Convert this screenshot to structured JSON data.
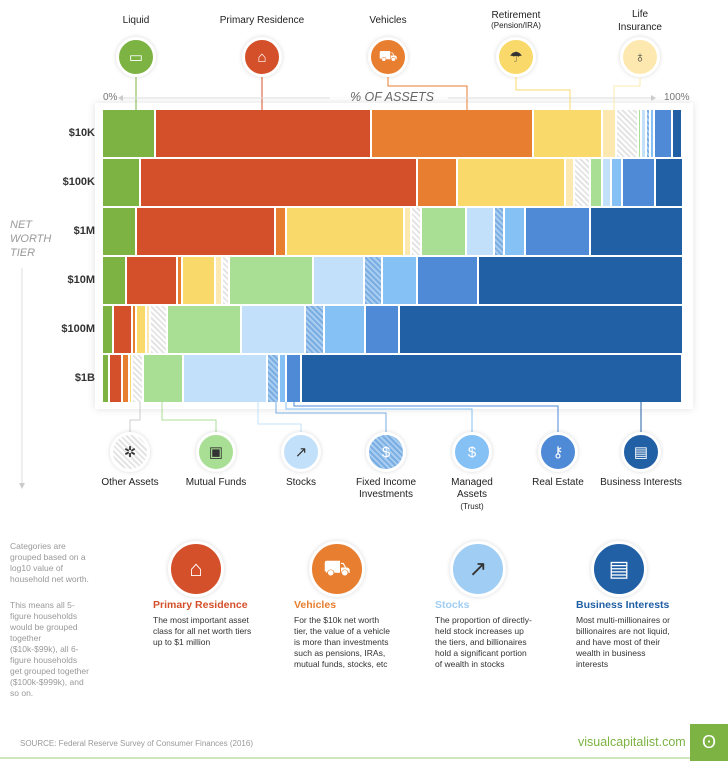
{
  "chart_data": {
    "type": "bar",
    "orientation": "horizontal-stacked-100",
    "axis_label": "% OF ASSETS",
    "axis_min_label": "0%",
    "axis_max_label": "100%",
    "y_title": "NET WORTH TIER",
    "categories": [
      "$10K",
      "$100K",
      "$1M",
      "$10M",
      "$100M",
      "$1B"
    ],
    "series": [
      {
        "name": "Liquid",
        "color": "#7cb342",
        "values": [
          9.1,
          6.5,
          5.8,
          4.1,
          1.9,
          1.2
        ]
      },
      {
        "name": "Primary Residence",
        "color": "#d4502a",
        "values": [
          37.2,
          47.7,
          24.0,
          8.9,
          3.2,
          2.2
        ]
      },
      {
        "name": "Vehicles",
        "color": "#e87e30",
        "values": [
          27.9,
          6.9,
          1.9,
          0.8,
          0.8,
          1.2
        ]
      },
      {
        "name": "Retirement",
        "subtitle": "(Pension/IRA)",
        "color": "#fad96b",
        "values": [
          11.8,
          18.7,
          20.3,
          5.6,
          1.6,
          0.5
        ]
      },
      {
        "name": "Life Insurance",
        "color": "#fde9b0",
        "values": [
          2.5,
          1.6,
          1.3,
          1.3,
          0.8,
          0
        ]
      },
      {
        "name": "Other Assets",
        "color": "#e4e4e4",
        "pattern": "hatch",
        "values": [
          3.7,
          2.6,
          1.6,
          1.2,
          2.9,
          2.0
        ]
      },
      {
        "name": "Mutual Funds",
        "color": "#a8df94",
        "values": [
          0.5,
          2.2,
          7.8,
          14.4,
          12.8,
          6.8
        ]
      },
      {
        "name": "Stocks",
        "color": "#c2e0fa",
        "values": [
          0.9,
          1.5,
          4.8,
          8.9,
          10.9,
          14.5
        ]
      },
      {
        "name": "Fixed Income Investments",
        "color": "#7aaee3",
        "pattern": "hatch",
        "values": [
          0.8,
          0,
          1.7,
          3.1,
          3.4,
          2.1
        ]
      },
      {
        "name": "Managed Assets",
        "subtitle": "(Trust)",
        "color": "#85c1f5",
        "values": [
          0.6,
          1.9,
          3.6,
          6.0,
          6.9,
          1.2
        ]
      },
      {
        "name": "Real Estate",
        "color": "#4f8ad6",
        "values": [
          3.2,
          5.7,
          11.2,
          10.4,
          5.9,
          2.5
        ]
      },
      {
        "name": "Business Interests",
        "color": "#2160a5",
        "values": [
          1.7,
          4.8,
          16.1,
          35.4,
          48.9,
          65.7
        ]
      }
    ]
  },
  "y_title_lines": [
    "NET",
    "WORTH",
    "TIER"
  ],
  "notes": [
    "Categories are grouped based on a log10 value of household net worth.",
    "This means all 5-figure households would be grouped together ($10k-$99k), all 6-figure households get grouped together ($100k-$999k), and so on."
  ],
  "features": [
    {
      "title": "Primary Residence",
      "text": "The most important asset class for all net worth tiers up to $1 million",
      "color": "#d4502a",
      "icon": "house-icon"
    },
    {
      "title": "Vehicles",
      "text": "For the $10k net worth tier, the value of a vehicle is more than investments such as pensions, IRAs, mutual funds, stocks, etc",
      "color": "#e87e30",
      "icon": "car-icon"
    },
    {
      "title": "Stocks",
      "text": "The proportion of directly-held stock increases up the tiers, and billionaires hold a significant portion of wealth in stocks",
      "color": "#9fcdf3",
      "icon": "stock-chart-icon"
    },
    {
      "title": "Business Interests",
      "text": "Most multi-millionaires or billionaires are not liquid, and have most of their wealth in business interests",
      "color": "#2160a5",
      "icon": "certificate-icon"
    }
  ],
  "footer": {
    "source": "SOURCE: Federal Reserve Survey of Consumer Finances (2016)",
    "brand": "visualcapitalist.com",
    "brand_color": "#7cb342"
  }
}
